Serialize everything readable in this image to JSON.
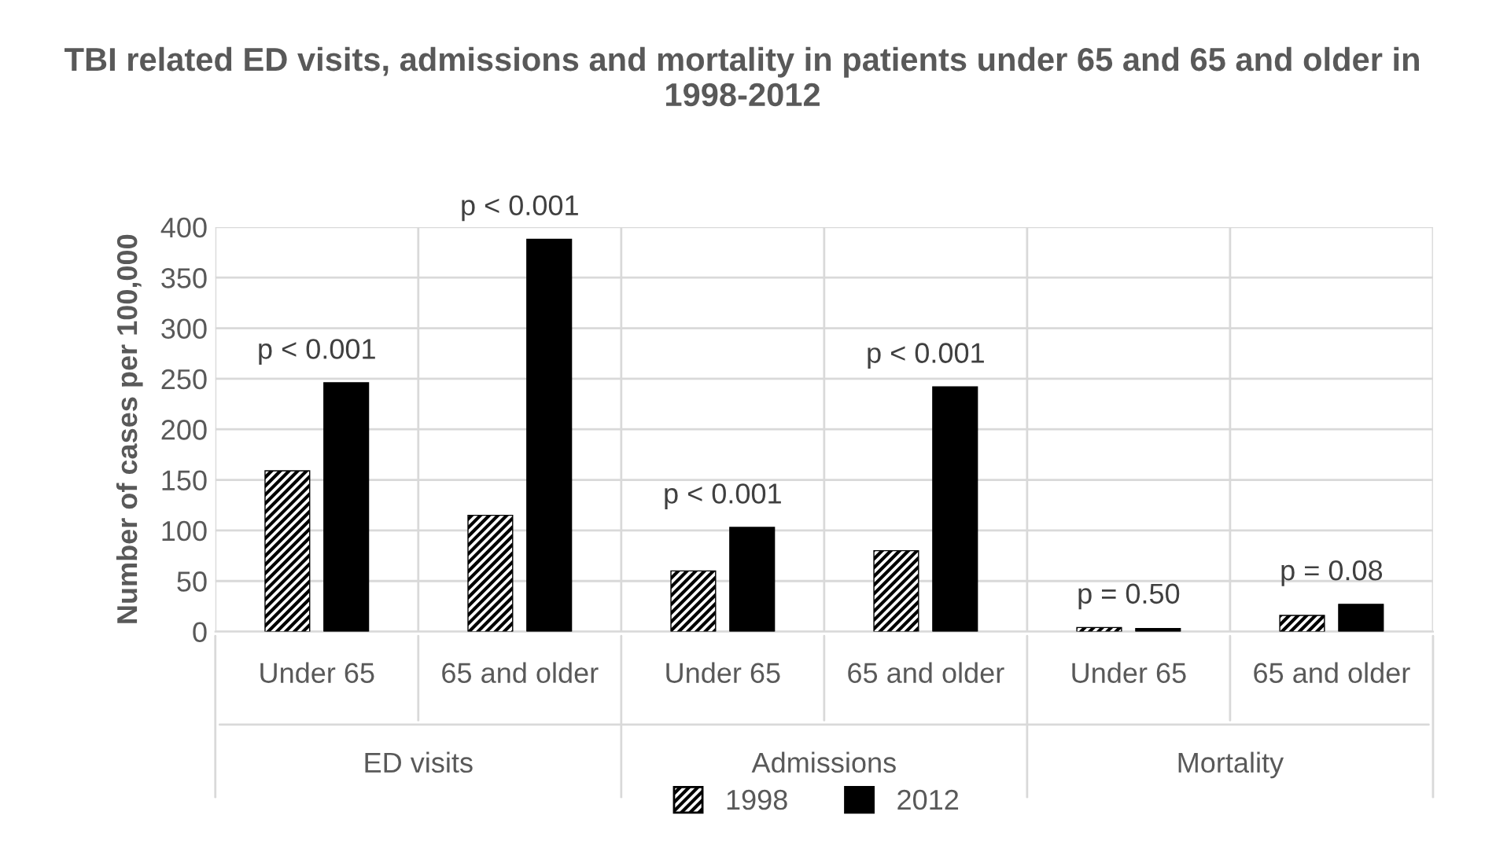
{
  "chart_data": {
    "type": "bar",
    "title": "TBI related ED visits, admissions and mortality in patients under 65 and 65 and older in 1998-2012",
    "ylabel": "Number of cases per 100,000",
    "categories": [
      "Under 65",
      "65 and older",
      "Under 65",
      "65 and older",
      "Under 65",
      "65 and older"
    ],
    "series": [
      {
        "name": "1998",
        "color": "#000000",
        "values": [
          159,
          115,
          60,
          80,
          4,
          16
        ]
      },
      {
        "name": "2012",
        "color": "#000000",
        "values": [
          246,
          388,
          103,
          242,
          3,
          27
        ]
      }
    ],
    "annotations": [
      "p < 0.001",
      "p < 0.001",
      "p < 0.001",
      "p < 0.001",
      "p = 0.50",
      "p = 0.08",
      "ED visits",
      "Admissions",
      "Mortality"
    ],
    "ylim": [
      0,
      400
    ],
    "yticks": [
      0,
      50,
      100,
      150,
      200,
      250,
      300,
      350,
      400
    ],
    "grid": true,
    "legend": "bottom"
  }
}
